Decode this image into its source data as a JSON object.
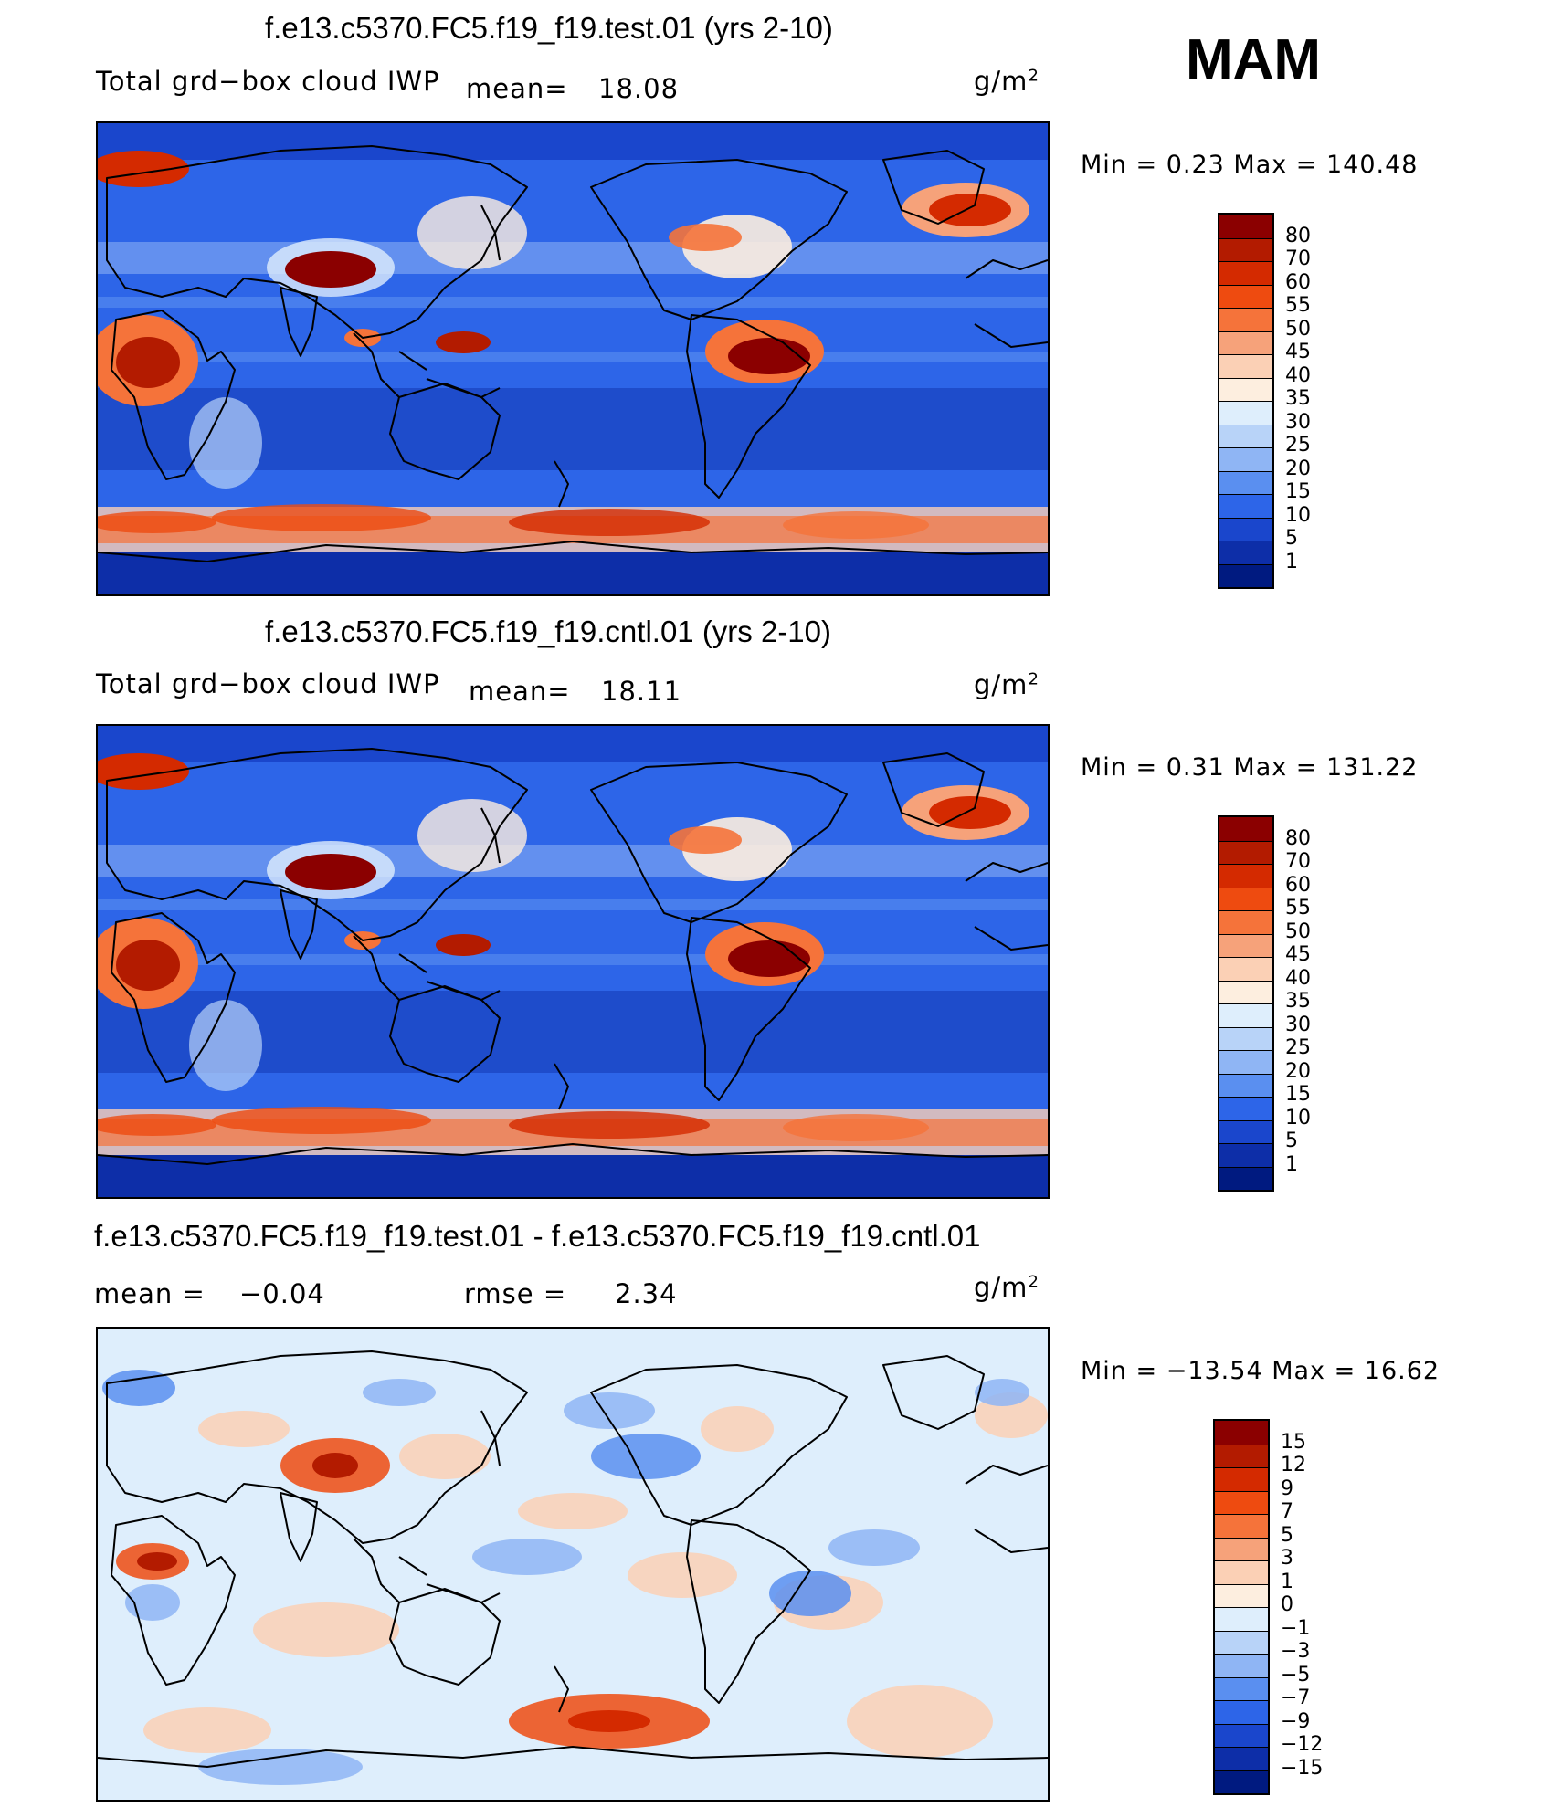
{
  "season": "MAM",
  "units": "g/m",
  "units_sup": "2",
  "chart_data": [
    {
      "type": "heatmap",
      "title": "f.e13.c5370.FC5.f19_f19.test.01 (yrs 2-10)",
      "variable": "Total grd−box cloud IWP",
      "mean_label": "mean=",
      "mean": "18.08",
      "min_max_label": "Min =     0.23  Max  =  140.48",
      "min": 0.23,
      "max": 140.48,
      "levels": [
        "80",
        "70",
        "60",
        "55",
        "50",
        "45",
        "40",
        "35",
        "30",
        "25",
        "20",
        "15",
        "10",
        "5",
        "1"
      ],
      "colors": [
        "#8b0000",
        "#b31b00",
        "#d42a00",
        "#ee4b10",
        "#f5733a",
        "#f6a27a",
        "#fbd0b5",
        "#fdeedf",
        "#deeefc",
        "#b8d3f8",
        "#8fb5f4",
        "#5a8ff0",
        "#2d65e8",
        "#1a46cc",
        "#0d2ea8",
        "#001a80"
      ]
    },
    {
      "type": "heatmap",
      "title": "f.e13.c5370.FC5.f19_f19.cntl.01 (yrs 2-10)",
      "variable": "Total grd−box cloud IWP",
      "mean_label": "mean=",
      "mean": "18.11",
      "min_max_label": "Min =     0.31  Max  =  131.22",
      "min": 0.31,
      "max": 131.22,
      "levels": [
        "80",
        "70",
        "60",
        "55",
        "50",
        "45",
        "40",
        "35",
        "30",
        "25",
        "20",
        "15",
        "10",
        "5",
        "1"
      ],
      "colors": [
        "#8b0000",
        "#b31b00",
        "#d42a00",
        "#ee4b10",
        "#f5733a",
        "#f6a27a",
        "#fbd0b5",
        "#fdeedf",
        "#deeefc",
        "#b8d3f8",
        "#8fb5f4",
        "#5a8ff0",
        "#2d65e8",
        "#1a46cc",
        "#0d2ea8",
        "#001a80"
      ]
    },
    {
      "type": "heatmap",
      "title": "f.e13.c5370.FC5.f19_f19.test.01 - f.e13.c5370.FC5.f19_f19.cntl.01",
      "mean_label": "mean  =",
      "mean": "−0.04",
      "rmse_label": "rmse  =",
      "rmse": "2.34",
      "min_max_label": "Min  = −13.54  Max  =    16.62",
      "min": -13.54,
      "max": 16.62,
      "levels": [
        "15",
        "12",
        "9",
        "7",
        "5",
        "3",
        "1",
        "0",
        "−1",
        "−3",
        "−5",
        "−7",
        "−9",
        "−12",
        "−15"
      ],
      "colors": [
        "#8b0000",
        "#b31b00",
        "#d42a00",
        "#ee4b10",
        "#f5733a",
        "#f6a27a",
        "#fbd0b5",
        "#fdeedf",
        "#deeefc",
        "#b8d3f8",
        "#8fb5f4",
        "#5a8ff0",
        "#2d65e8",
        "#1a46cc",
        "#0d2ea8",
        "#001a80"
      ]
    }
  ]
}
